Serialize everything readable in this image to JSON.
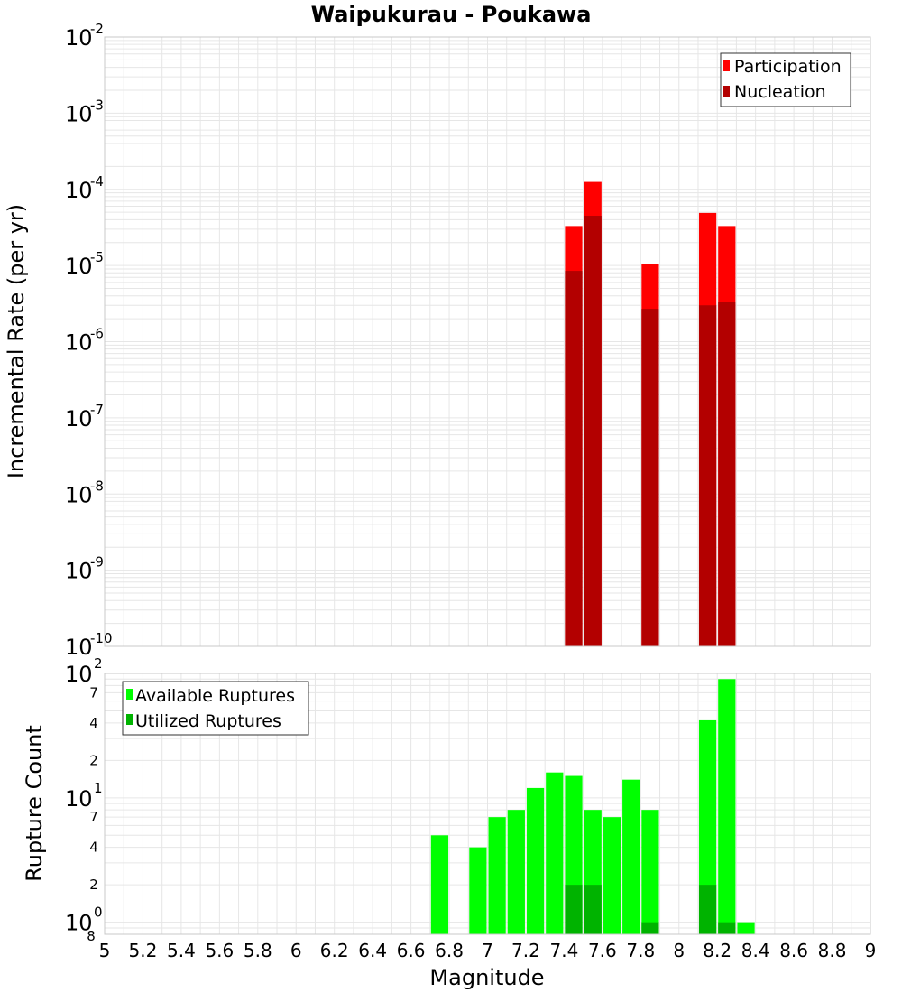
{
  "title": "Waipukurau - Poukawa",
  "colors": {
    "participation": "#ff0000",
    "nucleation": "#b30000",
    "available": "#00ff00",
    "utilized": "#00b300",
    "grid": "#e6e6e6",
    "plot_border": "#c8c8c8"
  },
  "chart_data": [
    {
      "type": "bar",
      "title": "Waipukurau - Poukawa",
      "xlabel": "",
      "ylabel": "Incremental Rate (per yr)",
      "yscale": "log",
      "ylim": [
        1e-10,
        0.01
      ],
      "xlim": [
        5,
        9
      ],
      "grid": true,
      "legend_position": "top-right",
      "y_tick_exponents": [
        "-10",
        "-9",
        "-8",
        "-7",
        "-6",
        "-5",
        "-4",
        "-3",
        "-2"
      ],
      "bar_width": 0.1,
      "series": [
        {
          "name": "Participation",
          "color": "#ff0000",
          "x": [
            7.45,
            7.55,
            7.85,
            8.15,
            8.25
          ],
          "values": [
            3.3e-05,
            0.000125,
            1.05e-05,
            4.9e-05,
            3.3e-05
          ]
        },
        {
          "name": "Nucleation",
          "color": "#b30000",
          "x": [
            7.45,
            7.55,
            7.85,
            8.15,
            8.25
          ],
          "values": [
            8.5e-06,
            4.5e-05,
            2.7e-06,
            3e-06,
            3.3e-06
          ]
        }
      ]
    },
    {
      "type": "bar",
      "xlabel": "Magnitude",
      "ylabel": "Rupture Count",
      "yscale": "log",
      "ylim": [
        0.8,
        100
      ],
      "xlim": [
        5,
        9
      ],
      "grid": true,
      "legend_position": "top-left",
      "x_ticks": [
        "5",
        "5.2",
        "5.4",
        "5.6",
        "5.8",
        "6",
        "6.2",
        "6.4",
        "6.6",
        "6.8",
        "7",
        "7.2",
        "7.4",
        "7.6",
        "7.8",
        "8",
        "8.2",
        "8.4",
        "8.6",
        "8.8",
        "9"
      ],
      "y_major_ticks": [
        {
          "value": 1,
          "exp": "0"
        },
        {
          "value": 10,
          "exp": "1"
        },
        {
          "value": 100,
          "exp": "2"
        }
      ],
      "y_minor_ticks": [
        {
          "value": 0.8,
          "label": "8"
        },
        {
          "value": 2,
          "label": "2"
        },
        {
          "value": 4,
          "label": "4"
        },
        {
          "value": 7,
          "label": "7"
        },
        {
          "value": 20,
          "label": "2"
        },
        {
          "value": 40,
          "label": "4"
        },
        {
          "value": 70,
          "label": "7"
        }
      ],
      "bar_width": 0.1,
      "series": [
        {
          "name": "Available Ruptures",
          "color": "#00ff00",
          "x": [
            6.75,
            6.95,
            7.05,
            7.15,
            7.25,
            7.35,
            7.45,
            7.55,
            7.65,
            7.75,
            7.85,
            8.15,
            8.25,
            8.35
          ],
          "values": [
            5,
            4,
            7,
            8,
            12,
            16,
            15,
            8,
            7,
            14,
            8,
            42,
            90,
            1
          ]
        },
        {
          "name": "Utilized Ruptures",
          "color": "#00b300",
          "x": [
            7.45,
            7.55,
            7.85,
            8.15,
            8.25
          ],
          "values": [
            2,
            2,
            1,
            2,
            1
          ]
        }
      ]
    }
  ]
}
